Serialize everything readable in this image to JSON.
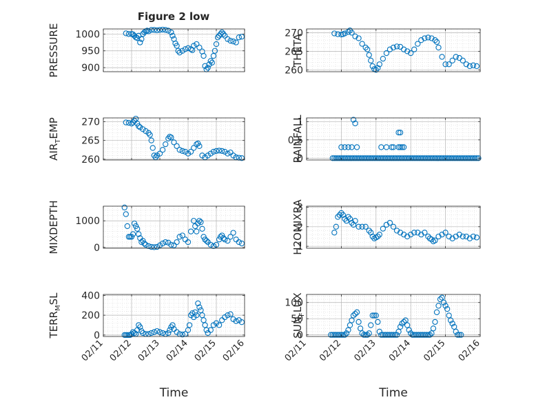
{
  "figure": {
    "title": "Figure 2 low",
    "xlabel_time": "Time",
    "xticks": [
      "02/11",
      "02/12",
      "02/13",
      "02/14",
      "02/15",
      "02/16"
    ],
    "xlim": [
      0,
      5
    ]
  },
  "colors": {
    "marker": "#0072BD",
    "axis": "#262626",
    "grid": "#b4b4b4",
    "minor_grid": "#d9d9d9"
  },
  "chart_data": [
    {
      "type": "scatter",
      "ylabel": "PRESSURE",
      "ylim": [
        888,
        1015
      ],
      "yticks": [
        900,
        950,
        1000
      ],
      "grid": true,
      "x": [
        0.8,
        0.9,
        1.0,
        1.05,
        1.1,
        1.15,
        1.2,
        1.25,
        1.3,
        1.35,
        1.4,
        1.45,
        1.5,
        1.55,
        1.6,
        1.7,
        1.8,
        1.9,
        2.0,
        2.1,
        2.2,
        2.3,
        2.4,
        2.45,
        2.5,
        2.55,
        2.6,
        2.65,
        2.7,
        2.8,
        2.9,
        3.0,
        3.1,
        3.15,
        3.2,
        3.3,
        3.4,
        3.5,
        3.55,
        3.6,
        3.65,
        3.7,
        3.75,
        3.8,
        3.85,
        3.9,
        3.95,
        4.0,
        4.05,
        4.1,
        4.15,
        4.2,
        4.25,
        4.3,
        4.4,
        4.5,
        4.6,
        4.7,
        4.8,
        4.9
      ],
      "y": [
        1002,
        1000,
        1000,
        999,
        995,
        990,
        988,
        995,
        975,
        985,
        1000,
        1005,
        1008,
        1010,
        1008,
        1012,
        1012,
        1011,
        1012,
        1013,
        1012,
        1010,
        1005,
        995,
        985,
        972,
        965,
        950,
        945,
        950,
        955,
        958,
        955,
        952,
        965,
        970,
        960,
        948,
        935,
        905,
        895,
        900,
        910,
        920,
        915,
        935,
        950,
        970,
        990,
        995,
        1000,
        1005,
        1000,
        995,
        985,
        980,
        978,
        975,
        990,
        992
      ]
    },
    {
      "type": "scatter",
      "ylabel": "THETA",
      "ylim": [
        259.5,
        271
      ],
      "yticks": [
        260,
        265,
        270
      ],
      "grid": true,
      "x": [
        0.8,
        0.9,
        1.0,
        1.05,
        1.1,
        1.2,
        1.25,
        1.3,
        1.4,
        1.5,
        1.6,
        1.7,
        1.75,
        1.8,
        1.85,
        1.9,
        1.95,
        2.0,
        2.05,
        2.1,
        2.2,
        2.3,
        2.4,
        2.5,
        2.6,
        2.7,
        2.8,
        2.9,
        3.0,
        3.1,
        3.2,
        3.3,
        3.4,
        3.5,
        3.6,
        3.7,
        3.75,
        3.8,
        3.9,
        4.0,
        4.1,
        4.2,
        4.3,
        4.4,
        4.5,
        4.6,
        4.7,
        4.8,
        4.9
      ],
      "y": [
        269.8,
        269.6,
        269.5,
        269.6,
        269.8,
        270.2,
        270.6,
        270,
        269,
        268.5,
        267,
        266,
        265.5,
        264,
        262.5,
        261,
        260.2,
        260,
        260.5,
        261.5,
        263,
        264.5,
        265.5,
        266,
        266.3,
        266.2,
        265.5,
        265,
        264.5,
        265.5,
        267,
        268,
        268.5,
        268.7,
        268.5,
        268,
        267.5,
        266,
        263.5,
        261.5,
        261.5,
        262.5,
        263.5,
        263.2,
        262.5,
        261.5,
        261,
        261.2,
        261
      ]
    },
    {
      "type": "scatter",
      "ylabel_main": "AIR",
      "ylabel_sub": "T",
      "ylabel_rest": "EMP",
      "ylim": [
        259.8,
        271
      ],
      "yticks": [
        260,
        265,
        270
      ],
      "grid": true,
      "x": [
        0.8,
        0.9,
        1.0,
        1.05,
        1.1,
        1.15,
        1.2,
        1.25,
        1.3,
        1.4,
        1.5,
        1.6,
        1.65,
        1.7,
        1.75,
        1.8,
        1.85,
        1.9,
        2.0,
        2.1,
        2.2,
        2.3,
        2.35,
        2.4,
        2.5,
        2.6,
        2.7,
        2.8,
        2.9,
        3.0,
        3.1,
        3.2,
        3.3,
        3.35,
        3.4,
        3.5,
        3.6,
        3.7,
        3.8,
        3.9,
        4.0,
        4.1,
        4.2,
        4.3,
        4.4,
        4.5,
        4.6,
        4.7,
        4.8,
        4.9
      ],
      "y": [
        269.8,
        269.7,
        269.5,
        269.8,
        270.2,
        270.8,
        269.5,
        268.8,
        268.5,
        268,
        267.5,
        267,
        266.5,
        265,
        263,
        261,
        260.5,
        261,
        261.5,
        262.5,
        264,
        265.5,
        266,
        265.8,
        264.5,
        263.5,
        262.5,
        262.2,
        262,
        261.5,
        262,
        263,
        264,
        264.2,
        263.5,
        261,
        260.5,
        261,
        261.5,
        262,
        262.2,
        262.3,
        262.2,
        262,
        261.5,
        261.8,
        261,
        260.5,
        260.4,
        260.3
      ]
    },
    {
      "type": "scatter",
      "ylabel": "RAINFALL",
      "ylim": [
        -0.05,
        1.1
      ],
      "yticks": [
        0,
        0.5,
        1
      ],
      "grid": true,
      "x": [
        0.75,
        0.8,
        0.85,
        0.9,
        0.95,
        1.0,
        1.05,
        1.1,
        1.15,
        1.2,
        1.25,
        1.3,
        1.35,
        1.4,
        1.45,
        1.5,
        1.55,
        1.6,
        1.65,
        1.7,
        1.75,
        1.8,
        1.85,
        1.9,
        1.95,
        2.0,
        2.05,
        2.1,
        2.15,
        2.2,
        2.25,
        2.3,
        2.35,
        2.4,
        2.45,
        2.5,
        2.55,
        2.6,
        2.65,
        2.7,
        2.75,
        2.8,
        2.85,
        2.9,
        2.95,
        3.0,
        3.05,
        3.1,
        3.15,
        3.2,
        3.25,
        3.3,
        3.35,
        3.4,
        3.45,
        3.5,
        3.55,
        3.6,
        3.65,
        3.7,
        3.75,
        3.8,
        3.85,
        3.9,
        3.95,
        4.0,
        4.05,
        4.1,
        4.15,
        4.2,
        4.25,
        4.3,
        4.35,
        4.4,
        4.45,
        4.5,
        4.55,
        4.6,
        4.65,
        4.7,
        4.75,
        4.8,
        4.85,
        4.9,
        4.95,
        1.0,
        1.1,
        1.2,
        1.3,
        1.35,
        1.4,
        1.45,
        2.15,
        2.3,
        2.45,
        2.5,
        2.65,
        2.7,
        2.75,
        2.8,
        2.65,
        2.7
      ],
      "y": [
        0,
        0,
        0,
        0,
        0,
        0,
        0,
        0,
        0,
        0,
        0,
        0,
        0,
        0,
        0,
        0,
        0,
        0,
        0,
        0,
        0,
        0,
        0,
        0,
        0,
        0,
        0,
        0,
        0,
        0,
        0,
        0,
        0,
        0,
        0,
        0,
        0,
        0,
        0,
        0,
        0,
        0,
        0,
        0,
        0,
        0,
        0,
        0,
        0,
        0,
        0,
        0,
        0,
        0,
        0,
        0,
        0,
        0,
        0,
        0,
        0,
        0,
        0,
        0,
        0,
        0,
        0,
        0,
        0,
        0,
        0,
        0,
        0,
        0,
        0,
        0,
        0,
        0,
        0,
        0,
        0,
        0,
        0,
        0,
        0,
        0.3,
        0.3,
        0.3,
        0.3,
        1.05,
        0.95,
        0.3,
        0.3,
        0.3,
        0.3,
        0.3,
        0.3,
        0.3,
        0.3,
        0.3,
        0.7,
        0.7
      ]
    },
    {
      "type": "scatter",
      "ylabel": "MIXDEPTH",
      "ylim": [
        -30,
        1550
      ],
      "yticks": [
        0,
        1000
      ],
      "grid": true,
      "x": [
        0.75,
        0.8,
        0.85,
        0.9,
        0.95,
        1.0,
        1.05,
        1.1,
        1.15,
        1.2,
        1.25,
        1.3,
        1.35,
        1.4,
        1.45,
        1.5,
        1.6,
        1.7,
        1.8,
        1.9,
        2.0,
        2.1,
        2.2,
        2.3,
        2.4,
        2.5,
        2.6,
        2.7,
        2.8,
        2.9,
        3.0,
        3.1,
        3.2,
        3.25,
        3.3,
        3.35,
        3.4,
        3.45,
        3.5,
        3.55,
        3.6,
        3.65,
        3.7,
        3.8,
        3.9,
        4.0,
        4.1,
        4.15,
        4.2,
        4.25,
        4.3,
        4.4,
        4.5,
        4.6,
        4.7,
        4.8,
        4.9
      ],
      "y": [
        1500,
        1250,
        800,
        400,
        400,
        400,
        500,
        900,
        800,
        700,
        500,
        350,
        200,
        250,
        150,
        100,
        50,
        20,
        10,
        20,
        80,
        150,
        200,
        180,
        100,
        80,
        200,
        400,
        450,
        300,
        200,
        600,
        1000,
        800,
        600,
        900,
        1000,
        950,
        700,
        400,
        300,
        250,
        200,
        100,
        50,
        100,
        300,
        400,
        450,
        350,
        300,
        250,
        400,
        550,
        300,
        200,
        150
      ]
    },
    {
      "type": "scatter",
      "ylabel": "H2OMIXRA",
      "ylim": [
        0.9,
        3.05
      ],
      "yticks": [
        1,
        2,
        3
      ],
      "grid": true,
      "x": [
        0.8,
        0.85,
        0.9,
        0.95,
        1.0,
        1.05,
        1.1,
        1.15,
        1.2,
        1.25,
        1.3,
        1.35,
        1.4,
        1.5,
        1.6,
        1.7,
        1.8,
        1.85,
        1.9,
        1.95,
        2.0,
        2.05,
        2.1,
        2.2,
        2.3,
        2.4,
        2.5,
        2.6,
        2.7,
        2.8,
        2.9,
        3.0,
        3.1,
        3.2,
        3.3,
        3.4,
        3.5,
        3.55,
        3.6,
        3.65,
        3.7,
        3.8,
        3.9,
        4.0,
        4.1,
        4.2,
        4.3,
        4.4,
        4.5,
        4.6,
        4.7,
        4.8,
        4.9
      ],
      "y": [
        1.7,
        2.0,
        2.5,
        2.6,
        2.7,
        2.6,
        2.4,
        2.3,
        2.5,
        2.4,
        2.2,
        2.1,
        2.3,
        2.0,
        2.0,
        2.0,
        1.8,
        1.7,
        1.5,
        1.4,
        1.45,
        1.5,
        1.6,
        1.9,
        2.1,
        2.2,
        2.0,
        1.8,
        1.7,
        1.6,
        1.5,
        1.6,
        1.7,
        1.7,
        1.6,
        1.7,
        1.5,
        1.4,
        1.35,
        1.25,
        1.3,
        1.5,
        1.6,
        1.7,
        1.5,
        1.4,
        1.5,
        1.6,
        1.5,
        1.5,
        1.4,
        1.5,
        1.45
      ]
    },
    {
      "type": "scatter",
      "ylabel_main": "TERR",
      "ylabel_sub": "M",
      "ylabel_rest": "SL",
      "ylim": [
        -15,
        410
      ],
      "yticks": [
        0,
        200,
        400
      ],
      "grid": true,
      "x": [
        0.75,
        0.8,
        0.85,
        0.9,
        0.95,
        1.0,
        1.05,
        1.1,
        1.15,
        1.2,
        1.25,
        1.3,
        1.35,
        1.4,
        1.5,
        1.6,
        1.7,
        1.8,
        1.9,
        2.0,
        2.1,
        2.2,
        2.3,
        2.35,
        2.4,
        2.45,
        2.5,
        2.6,
        2.7,
        2.8,
        2.9,
        3.0,
        3.05,
        3.1,
        3.15,
        3.2,
        3.25,
        3.3,
        3.35,
        3.4,
        3.45,
        3.5,
        3.55,
        3.6,
        3.65,
        3.7,
        3.8,
        3.9,
        4.0,
        4.1,
        4.2,
        4.3,
        4.4,
        4.5,
        4.6,
        4.7,
        4.8,
        4.9
      ],
      "y": [
        0,
        0,
        0,
        0,
        0,
        10,
        30,
        20,
        10,
        50,
        100,
        80,
        40,
        20,
        10,
        10,
        20,
        30,
        40,
        30,
        20,
        10,
        20,
        50,
        80,
        100,
        60,
        30,
        10,
        5,
        10,
        50,
        100,
        200,
        220,
        180,
        230,
        200,
        320,
        280,
        250,
        200,
        150,
        100,
        50,
        20,
        50,
        100,
        120,
        100,
        150,
        180,
        200,
        210,
        160,
        140,
        150,
        130
      ]
    },
    {
      "type": "scatter",
      "ylabel_main": "SUN",
      "ylabel_sub": "F",
      "ylabel_rest": "LUX",
      "ylim": [
        -5,
        125
      ],
      "yticks": [
        0,
        50,
        100
      ],
      "grid": true,
      "x": [
        0.7,
        0.75,
        0.8,
        0.85,
        0.9,
        0.95,
        1.0,
        1.05,
        1.1,
        1.15,
        1.2,
        1.25,
        1.3,
        1.35,
        1.4,
        1.45,
        1.5,
        1.55,
        1.6,
        1.65,
        1.7,
        1.75,
        1.8,
        1.85,
        1.9,
        1.95,
        2.0,
        2.05,
        2.1,
        2.15,
        2.2,
        2.25,
        2.3,
        2.35,
        2.4,
        2.45,
        2.5,
        2.55,
        2.6,
        2.65,
        2.7,
        2.75,
        2.8,
        2.85,
        2.9,
        2.95,
        3.0,
        3.05,
        3.1,
        3.15,
        3.2,
        3.25,
        3.3,
        3.35,
        3.4,
        3.45,
        3.5,
        3.55,
        3.6,
        3.65,
        3.7,
        3.75,
        3.8,
        3.85,
        3.9,
        3.95,
        4.0,
        4.05,
        4.1,
        4.15,
        4.2,
        4.25,
        4.3,
        4.35,
        4.4,
        4.45
      ],
      "y": [
        0,
        0,
        0,
        0,
        0,
        0,
        0,
        0,
        0,
        5,
        15,
        30,
        45,
        60,
        65,
        70,
        40,
        20,
        5,
        0,
        0,
        0,
        5,
        30,
        60,
        60,
        60,
        40,
        10,
        0,
        0,
        0,
        0,
        0,
        0,
        0,
        0,
        0,
        0,
        10,
        25,
        35,
        40,
        45,
        30,
        15,
        5,
        0,
        0,
        0,
        0,
        0,
        0,
        0,
        0,
        0,
        0,
        0,
        5,
        20,
        40,
        70,
        90,
        110,
        115,
        100,
        90,
        80,
        60,
        45,
        35,
        25,
        10,
        0,
        0,
        0
      ]
    }
  ]
}
